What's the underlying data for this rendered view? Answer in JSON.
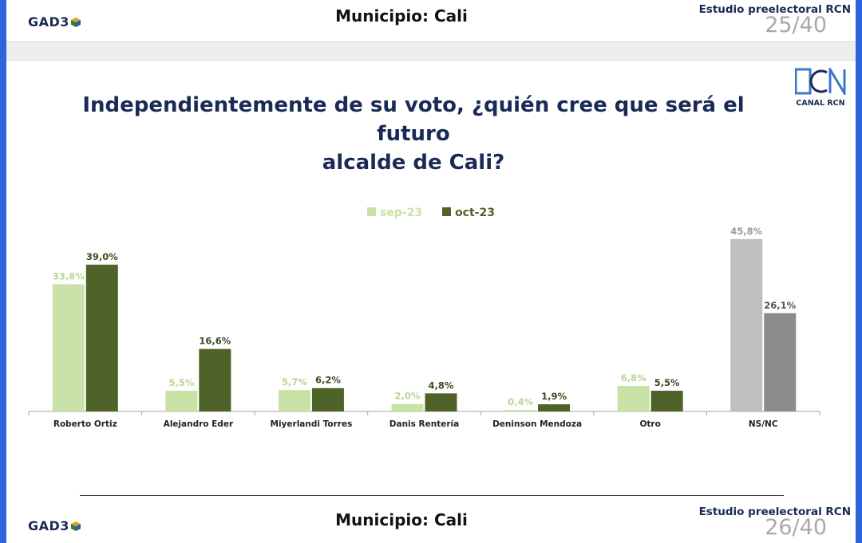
{
  "header": {
    "logo_text": "GAD3",
    "municipio": "Municipio: Cali",
    "study": "Estudio preelectoral RCN",
    "page": "25/40"
  },
  "footer": {
    "logo_text": "GAD3",
    "municipio": "Municipio: Cali",
    "study": "Estudio preelectoral RCN",
    "page": "26/40"
  },
  "rcn_logo": {
    "brand": "CANAL RCN",
    "mark": "RCN"
  },
  "colors": {
    "sep": "#c9e2a6",
    "oct": "#4f6228",
    "nsnc_sep": "#bfbfbf",
    "nsnc_oct": "#8c8c8c",
    "title": "#1b2a55",
    "frame": "#2f63d9"
  },
  "chart_data": {
    "type": "bar",
    "title_line1": "Independientemente de su voto, ¿quién cree que será el futuro",
    "title_line2": "alcalde de Cali?",
    "categories": [
      "Roberto Ortiz",
      "Alejandro Eder",
      "Miyerlandi Torres",
      "Danis Rentería",
      "Deninson Mendoza",
      "Otro",
      "NS/NC"
    ],
    "series": [
      {
        "name": "sep-23",
        "values": [
          33.8,
          5.5,
          5.7,
          2.0,
          0.4,
          6.8,
          45.8
        ],
        "labels": [
          "33,8%",
          "5,5%",
          "5,7%",
          "2,0%",
          "0,4%",
          "6,8%",
          "45,8%"
        ]
      },
      {
        "name": "oct-23",
        "values": [
          39.0,
          16.6,
          6.2,
          4.8,
          1.9,
          5.5,
          26.1
        ],
        "labels": [
          "39,0%",
          "16,6%",
          "6,2%",
          "4,8%",
          "1,9%",
          "5,5%",
          "26,1%"
        ]
      }
    ],
    "ylim": [
      0,
      50
    ],
    "legend_position": "top-center",
    "grid": false
  }
}
